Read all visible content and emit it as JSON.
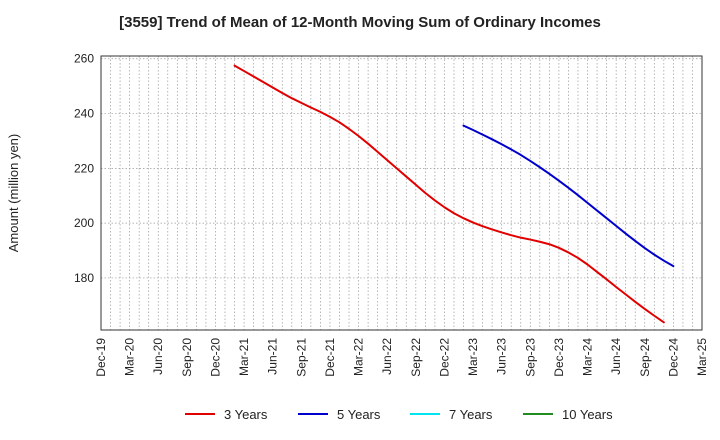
{
  "chart_data": {
    "type": "line",
    "title": "[3559]  Trend of Mean of 12-Month Moving Sum of Ordinary Incomes",
    "xlabel": "",
    "ylabel": "Amount (million yen)",
    "ylim": [
      161,
      261
    ],
    "yticks": [
      180,
      200,
      220,
      240,
      260
    ],
    "grid": true,
    "legend_position": "bottom",
    "categories": [
      "Dec-19",
      "Mar-20",
      "Jun-20",
      "Sep-20",
      "Dec-20",
      "Mar-21",
      "Jun-21",
      "Sep-21",
      "Dec-21",
      "Mar-22",
      "Jun-22",
      "Sep-22",
      "Dec-22",
      "Mar-23",
      "Jun-23",
      "Sep-23",
      "Dec-23",
      "Mar-24",
      "Jun-24",
      "Sep-24",
      "Dec-24",
      "Mar-25"
    ],
    "series": [
      {
        "name": "3 Years",
        "color": "#e00000",
        "points": [
          [
            "Feb-21",
            257.5
          ],
          [
            "Mar-21",
            255.5
          ],
          [
            "Apr-21",
            253.5
          ],
          [
            "May-21",
            251.5
          ],
          [
            "Jun-21",
            249.5
          ],
          [
            "Jul-21",
            247.5
          ],
          [
            "Aug-21",
            245.6
          ],
          [
            "Sep-21",
            243.9
          ],
          [
            "Oct-21",
            242.2
          ],
          [
            "Nov-21",
            240.6
          ],
          [
            "Dec-21",
            238.8
          ],
          [
            "Jan-22",
            236.8
          ],
          [
            "Feb-22",
            234.4
          ],
          [
            "Mar-22",
            231.8
          ],
          [
            "Apr-22",
            229
          ],
          [
            "May-22",
            226
          ],
          [
            "Jun-22",
            223
          ],
          [
            "Jul-22",
            220
          ],
          [
            "Aug-22",
            217
          ],
          [
            "Sep-22",
            214
          ],
          [
            "Oct-22",
            211
          ],
          [
            "Nov-22",
            208.3
          ],
          [
            "Dec-22",
            205.8
          ],
          [
            "Jan-23",
            203.6
          ],
          [
            "Feb-23",
            201.8
          ],
          [
            "Mar-23",
            200.2
          ],
          [
            "Apr-23",
            198.9
          ],
          [
            "May-23",
            197.7
          ],
          [
            "Jun-23",
            196.6
          ],
          [
            "Jul-23",
            195.6
          ],
          [
            "Aug-23",
            194.7
          ],
          [
            "Sep-23",
            194
          ],
          [
            "Oct-23",
            193.2
          ],
          [
            "Nov-23",
            192.3
          ],
          [
            "Dec-23",
            191
          ],
          [
            "Jan-24",
            189.3
          ],
          [
            "Feb-24",
            187.3
          ],
          [
            "Mar-24",
            184.9
          ],
          [
            "Apr-24",
            182.2
          ],
          [
            "May-24",
            179.5
          ],
          [
            "Jun-24",
            176.7
          ],
          [
            "Jul-24",
            174
          ],
          [
            "Aug-24",
            171.3
          ],
          [
            "Sep-24",
            168.7
          ],
          [
            "Oct-24",
            166.2
          ],
          [
            "Nov-24",
            163.8
          ]
        ]
      },
      {
        "name": "5 Years",
        "color": "#0000cc",
        "points": [
          [
            "Feb-23",
            235.6
          ],
          [
            "Mar-23",
            234
          ],
          [
            "Apr-23",
            232.3
          ],
          [
            "May-23",
            230.6
          ],
          [
            "Jun-23",
            228.8
          ],
          [
            "Jul-23",
            226.9
          ],
          [
            "Aug-23",
            224.9
          ],
          [
            "Sep-23",
            222.7
          ],
          [
            "Oct-23",
            220.4
          ],
          [
            "Nov-23",
            218
          ],
          [
            "Dec-23",
            215.5
          ],
          [
            "Jan-24",
            212.9
          ],
          [
            "Feb-24",
            210.2
          ],
          [
            "Mar-24",
            207.4
          ],
          [
            "Apr-24",
            204.6
          ],
          [
            "May-24",
            201.8
          ],
          [
            "Jun-24",
            199
          ],
          [
            "Jul-24",
            196.2
          ],
          [
            "Aug-24",
            193.5
          ],
          [
            "Sep-24",
            190.9
          ],
          [
            "Oct-24",
            188.5
          ],
          [
            "Nov-24",
            186.3
          ],
          [
            "Dec-24",
            184.3
          ]
        ]
      },
      {
        "name": "7 Years",
        "color": "#00e5ee",
        "points": []
      },
      {
        "name": "10 Years",
        "color": "#228b22",
        "points": []
      }
    ]
  }
}
